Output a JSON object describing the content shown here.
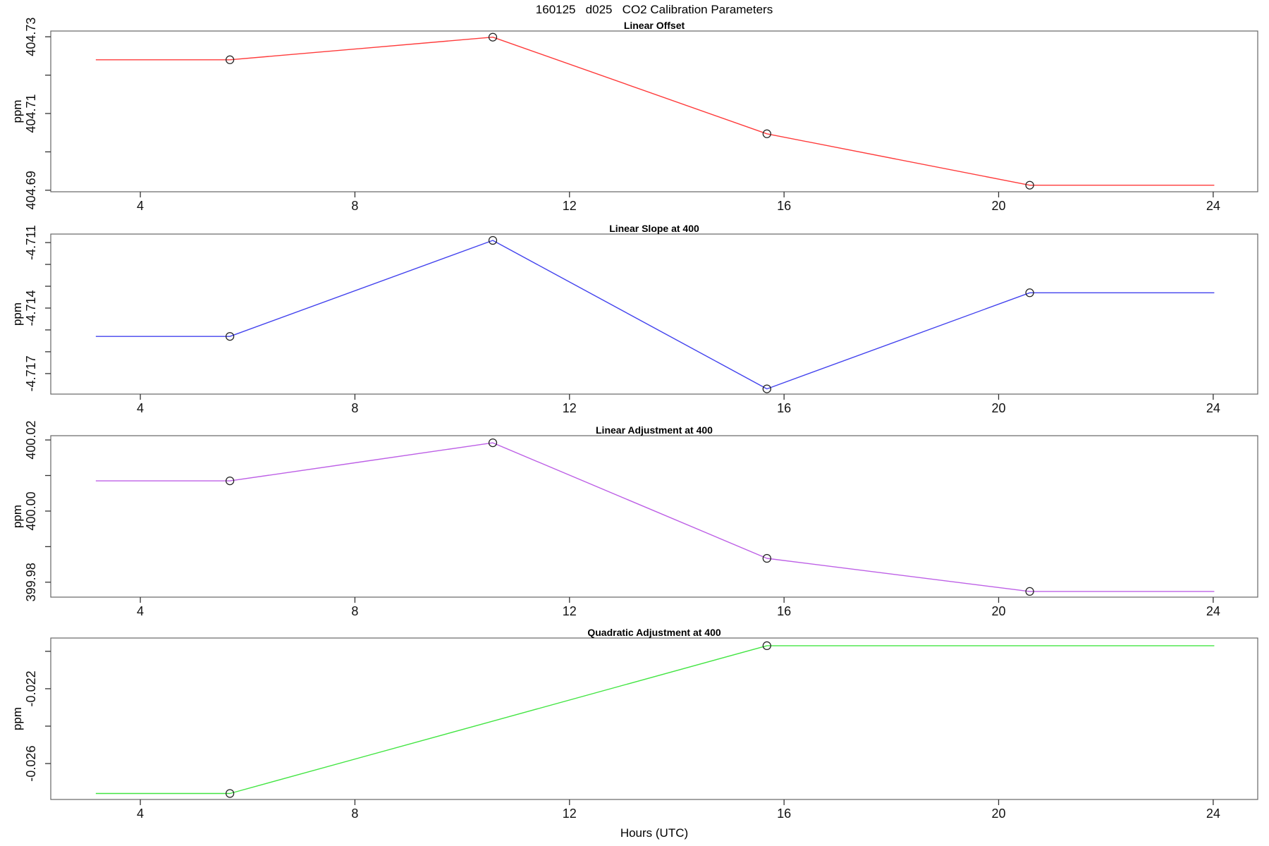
{
  "title": "160125   d025   CO2 Calibration Parameters",
  "xlabel": "Hours (UTC)",
  "ylabel": "ppm",
  "x_ticks": [
    4,
    8,
    12,
    16,
    20,
    24
  ],
  "xlim": [
    2.33,
    24.83
  ],
  "marker_color": "#1f1f1f",
  "axis_color": "#666666",
  "tick_color": "#333333",
  "chart_data": [
    {
      "type": "line",
      "title": "Linear Offset",
      "color": "#ff3b3b",
      "ylabel": "ppm",
      "ylim": [
        404.6896,
        404.7315
      ],
      "y_ticks": [
        {
          "v": 404.69,
          "label": "404.69"
        },
        {
          "v": 404.7
        },
        {
          "v": 404.71,
          "label": "404.71"
        },
        {
          "v": 404.72
        },
        {
          "v": 404.73,
          "label": "404.73"
        }
      ],
      "x": [
        3.17,
        5.67,
        10.57,
        15.68,
        20.58,
        24.02
      ],
      "y": [
        404.724,
        404.724,
        404.7299,
        404.7047,
        404.6913,
        404.6913
      ],
      "marker_x": [
        5.67,
        10.57,
        15.68,
        20.58
      ],
      "marker_y": [
        404.724,
        404.7299,
        404.7047,
        404.6913
      ]
    },
    {
      "type": "line",
      "title": "Linear Slope at 400",
      "color": "#4343ee",
      "ylabel": "ppm",
      "ylim": [
        -4.71794,
        -4.71061
      ],
      "y_ticks": [
        {
          "v": -4.717,
          "label": "-4.717"
        },
        {
          "v": -4.716
        },
        {
          "v": -4.715
        },
        {
          "v": -4.714,
          "label": "-4.714"
        },
        {
          "v": -4.713
        },
        {
          "v": -4.712
        },
        {
          "v": -4.711,
          "label": "-4.711"
        }
      ],
      "x": [
        3.17,
        5.67,
        10.57,
        15.68,
        20.58,
        24.02
      ],
      "y": [
        -4.7153,
        -4.7153,
        -4.7109,
        -4.7177,
        -4.7133,
        -4.7133
      ],
      "marker_x": [
        5.67,
        10.57,
        15.68,
        20.58
      ],
      "marker_y": [
        -4.7153,
        -4.7109,
        -4.7177,
        -4.7133
      ]
    },
    {
      "type": "line",
      "title": "Linear Adjustment at 400",
      "color": "#bd60e6",
      "ylabel": "ppm",
      "ylim": [
        399.9758,
        400.0212
      ],
      "y_ticks": [
        {
          "v": 399.98,
          "label": "399.98"
        },
        {
          "v": 399.99
        },
        {
          "v": 400.0,
          "label": "400.00"
        },
        {
          "v": 400.01
        },
        {
          "v": 400.02,
          "label": "400.02"
        }
      ],
      "x": [
        3.17,
        5.67,
        10.57,
        15.68,
        20.58,
        24.02
      ],
      "y": [
        400.0085,
        400.0085,
        400.0192,
        399.9867,
        399.9774,
        399.9774
      ],
      "marker_x": [
        5.67,
        10.57,
        15.68,
        20.58
      ],
      "marker_y": [
        400.0085,
        400.0192,
        399.9867,
        399.9774
      ]
    },
    {
      "type": "line",
      "title": "Quadratic Adjustment at 400",
      "color": "#43e543",
      "ylabel": "ppm",
      "ylim": [
        -0.02792,
        -0.01929
      ],
      "y_ticks": [
        {
          "v": -0.026,
          "label": "-0.026"
        },
        {
          "v": -0.024
        },
        {
          "v": -0.022,
          "label": "-0.022"
        },
        {
          "v": -0.02
        }
      ],
      "x": [
        3.17,
        5.67,
        15.68,
        24.02
      ],
      "y": [
        -0.0276,
        -0.0276,
        -0.0197,
        -0.0197
      ],
      "marker_x": [
        5.67,
        15.68
      ],
      "marker_y": [
        -0.0276,
        -0.0197
      ]
    }
  ]
}
